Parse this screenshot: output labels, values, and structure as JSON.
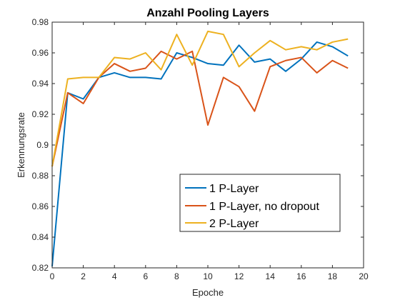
{
  "chart_data": {
    "type": "line",
    "title": "Anzahl Pooling Layers",
    "xlabel": "Epoche",
    "ylabel": "Erkennungsrate",
    "xlim": [
      0,
      20
    ],
    "ylim": [
      0.82,
      0.98
    ],
    "xticks": [
      0,
      2,
      4,
      6,
      8,
      10,
      12,
      14,
      16,
      18,
      20
    ],
    "xtick_labels": [
      "0",
      "2",
      "4",
      "6",
      "8",
      "10",
      "12",
      "14",
      "16",
      "18",
      "20"
    ],
    "yticks": [
      0.82,
      0.84,
      0.86,
      0.88,
      0.9,
      0.92,
      0.94,
      0.96,
      0.98
    ],
    "ytick_labels": [
      "0.82",
      "0.84",
      "0.86",
      "0.88",
      "0.9",
      "0.92",
      "0.94",
      "0.96",
      "0.98"
    ],
    "grid": false,
    "legend_position": "lower-right",
    "x": [
      0,
      1,
      2,
      3,
      4,
      5,
      6,
      7,
      8,
      9,
      10,
      11,
      12,
      13,
      14,
      15,
      16,
      17,
      18,
      19
    ],
    "series": [
      {
        "name": "1 P-Layer",
        "color": "#0072BD",
        "values": [
          0.821,
          0.934,
          0.93,
          0.944,
          0.947,
          0.944,
          0.944,
          0.943,
          0.96,
          0.957,
          0.953,
          0.952,
          0.965,
          0.954,
          0.956,
          0.948,
          0.956,
          0.967,
          0.964,
          0.958
        ]
      },
      {
        "name": "1 P-Layer, no dropout",
        "color": "#D95319",
        "values": [
          0.886,
          0.934,
          0.927,
          0.944,
          0.953,
          0.948,
          0.95,
          0.961,
          0.956,
          0.961,
          0.913,
          0.944,
          0.938,
          0.922,
          0.951,
          0.955,
          0.957,
          0.947,
          0.955,
          0.95
        ]
      },
      {
        "name": "2 P-Layer",
        "color": "#EDB120",
        "values": [
          0.886,
          0.943,
          0.944,
          0.944,
          0.957,
          0.956,
          0.96,
          0.949,
          0.972,
          0.952,
          0.974,
          0.972,
          0.951,
          0.96,
          0.968,
          0.962,
          0.964,
          0.962,
          0.967,
          0.969
        ]
      }
    ]
  }
}
